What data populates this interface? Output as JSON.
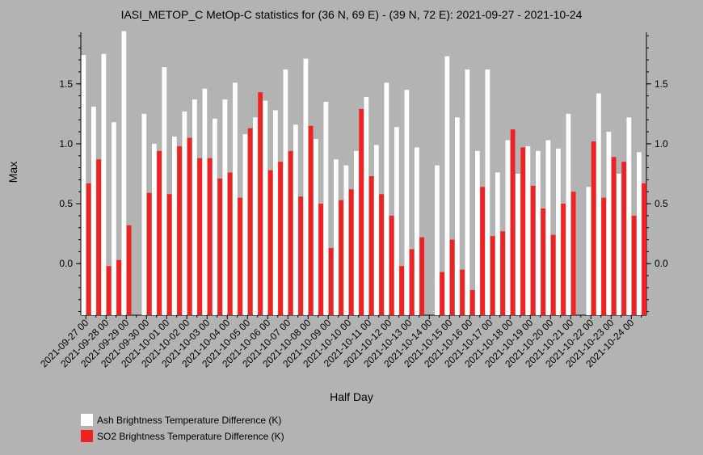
{
  "chart_data": {
    "type": "bar",
    "title": "IASI_METOP_C MetOp-C statistics for (36 N, 69 E) - (39 N, 72 E): 2021-09-27 - 2021-10-24",
    "xlabel": "Half Day",
    "ylabel": "Max",
    "ylim": [
      -0.43,
      1.93
    ],
    "yticks": [
      0.0,
      0.5,
      1.0,
      1.5
    ],
    "ytick_labels": [
      "0.0",
      "0.5",
      "1.0",
      "1.5"
    ],
    "x_tick_labels": [
      "2021-09-27 00",
      "2021-09-28 00",
      "2021-09-29 00",
      "2021-09-30 00",
      "2021-10-01 00",
      "2021-10-02 00",
      "2021-10-03 00",
      "2021-10-04 00",
      "2021-10-05 00",
      "2021-10-06 00",
      "2021-10-07 00",
      "2021-10-08 00",
      "2021-10-09 00",
      "2021-10-10 00",
      "2021-10-11 00",
      "2021-10-12 00",
      "2021-10-13 00",
      "2021-10-14 00",
      "2021-10-15 00",
      "2021-10-16 00",
      "2021-10-17 00",
      "2021-10-18 00",
      "2021-10-19 00",
      "2021-10-20 00",
      "2021-10-21 00",
      "2021-10-22 00",
      "2021-10-23 00",
      "2021-10-24 00"
    ],
    "series": [
      {
        "name": "Ash Brightness Temperature Difference (K)",
        "color": "#ffffff",
        "values": [
          1.74,
          1.31,
          1.75,
          1.18,
          1.94,
          null,
          1.25,
          1.0,
          1.64,
          1.06,
          1.27,
          1.37,
          1.46,
          1.21,
          1.37,
          1.51,
          1.08,
          1.22,
          1.36,
          1.28,
          1.62,
          1.16,
          1.71,
          1.04,
          1.35,
          0.87,
          0.82,
          0.94,
          1.39,
          0.99,
          1.51,
          1.14,
          1.45,
          0.97,
          null,
          0.82,
          1.73,
          1.22,
          1.62,
          0.94,
          1.62,
          0.76,
          1.03,
          0.75,
          0.98,
          0.94,
          1.03,
          0.96,
          1.25,
          null,
          0.64,
          1.42,
          1.1,
          0.75,
          1.22,
          0.93
        ]
      },
      {
        "name": "SO2 Brightness Temperature Difference (K)",
        "color": "#ee2222",
        "values": [
          0.67,
          0.87,
          -0.02,
          0.03,
          0.32,
          null,
          0.59,
          0.94,
          0.58,
          0.98,
          1.05,
          0.88,
          0.88,
          0.71,
          0.76,
          0.55,
          1.13,
          1.43,
          0.78,
          0.85,
          0.94,
          0.56,
          1.15,
          0.5,
          0.13,
          0.53,
          0.62,
          1.29,
          0.73,
          0.58,
          0.4,
          -0.02,
          0.12,
          0.22,
          null,
          -0.07,
          0.2,
          -0.05,
          -0.22,
          0.64,
          0.23,
          0.27,
          1.12,
          0.97,
          0.65,
          0.46,
          0.24,
          0.5,
          0.6,
          null,
          1.02,
          0.55,
          0.89,
          0.85,
          0.4,
          0.67
        ]
      }
    ],
    "grid": false,
    "legend_position": "bottom-left"
  }
}
